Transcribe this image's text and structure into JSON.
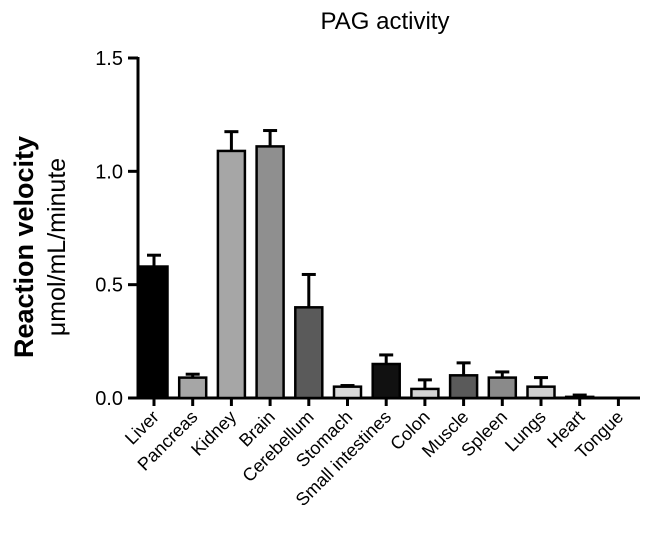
{
  "chart_data": {
    "type": "bar",
    "title": "PAG activity",
    "ylabel_line1": "Reaction velocity",
    "ylabel_line2": "μmol/mL/minute",
    "xlabel": "",
    "ylim": [
      0,
      1.5
    ],
    "yticks": [
      "0.0",
      "0.5",
      "1.0",
      "1.5"
    ],
    "ytick_values": [
      0,
      0.5,
      1.0,
      1.5
    ],
    "categories": [
      "Liver",
      "Pancreas",
      "Kidney",
      "Brain",
      "Cerebellum",
      "Stomach",
      "Small intestines",
      "Colon",
      "Muscle",
      "Spleen",
      "Lungs",
      "Heart",
      "Tongue"
    ],
    "values": [
      0.58,
      0.09,
      1.09,
      1.11,
      0.4,
      0.05,
      0.15,
      0.04,
      0.1,
      0.09,
      0.05,
      0.005,
      0.0
    ],
    "errors": [
      0.05,
      0.015,
      0.085,
      0.07,
      0.145,
      0.005,
      0.04,
      0.04,
      0.055,
      0.025,
      0.04,
      0.008,
      0.0
    ],
    "bar_colors": [
      "#000000",
      "#a6a6a6",
      "#a6a6a6",
      "#8f8f8f",
      "#5a5a5a",
      "#d9d9d9",
      "#111111",
      "#d4d4d4",
      "#5a5a5a",
      "#8a8a8a",
      "#cfcfcf",
      "#6e6e6e",
      "#ffffff"
    ],
    "grid": false,
    "legend": "none"
  }
}
